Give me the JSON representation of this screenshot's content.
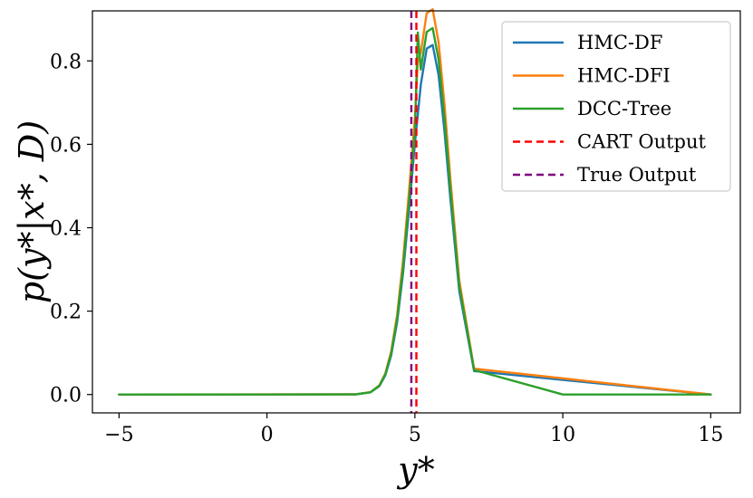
{
  "chart_data": {
    "type": "line",
    "title": "",
    "xlabel": "y*",
    "ylabel": "p(y*|x*, D)",
    "xlim": [
      -5.9,
      16.0
    ],
    "ylim": [
      -0.044,
      0.92
    ],
    "xticks": [
      -5,
      0,
      5,
      10,
      15
    ],
    "xtick_labels": [
      "−5",
      "0",
      "5",
      "10",
      "15"
    ],
    "yticks": [
      0.0,
      0.2,
      0.4,
      0.6,
      0.8
    ],
    "ytick_labels": [
      "0.0",
      "0.2",
      "0.4",
      "0.6",
      "0.8"
    ],
    "grid": false,
    "legend_position": "top-right",
    "series": [
      {
        "name": "HMC-DF",
        "color": "#1f77b4",
        "style": "solid",
        "x": [
          -5,
          3,
          3.5,
          3.8,
          4.0,
          4.2,
          4.4,
          4.6,
          4.8,
          5.0,
          5.2,
          5.4,
          5.6,
          5.8,
          6.0,
          6.2,
          6.5,
          7.0,
          15
        ],
        "y": [
          0.0,
          0.0004,
          0.0053,
          0.0203,
          0.0458,
          0.0939,
          0.1739,
          0.2914,
          0.4408,
          0.6024,
          0.7432,
          0.8294,
          0.8381,
          0.7662,
          0.6319,
          0.4705,
          0.2488,
          0.0562,
          0.0
        ]
      },
      {
        "name": "HMC-DFI",
        "color": "#ff7f0e",
        "style": "solid",
        "x": [
          -5,
          3,
          3.5,
          3.8,
          4.0,
          4.2,
          4.4,
          4.6,
          4.8,
          5.0,
          5.1,
          5.2,
          5.4,
          5.6,
          5.8,
          6.0,
          6.2,
          6.5,
          7.0,
          15
        ],
        "y": [
          0.0,
          0.0005,
          0.0058,
          0.0224,
          0.0505,
          0.1035,
          0.1917,
          0.3213,
          0.486,
          0.6642,
          0.8,
          0.8195,
          0.9145,
          0.924,
          0.8448,
          0.6967,
          0.5187,
          0.2743,
          0.062,
          0.0
        ]
      },
      {
        "name": "DCC-Tree",
        "color": "#2ca02c",
        "style": "solid",
        "x": [
          -5,
          0,
          3,
          3.5,
          3.8,
          4.0,
          4.2,
          4.4,
          4.6,
          4.8,
          5.0,
          5.1,
          5.2,
          5.4,
          5.6,
          5.8,
          6.0,
          6.2,
          6.5,
          7.0,
          10,
          15
        ],
        "y": [
          0.0,
          0.0,
          0.0005,
          0.0055,
          0.0213,
          0.048,
          0.0985,
          0.1823,
          0.3056,
          0.4622,
          0.6316,
          0.868,
          0.7793,
          0.8696,
          0.8787,
          0.8034,
          0.6625,
          0.4933,
          0.2608,
          0.059,
          0.0,
          0.0
        ]
      }
    ],
    "vlines": [
      {
        "name": "CART Output",
        "x": 5.05,
        "color": "#ff0000",
        "style": "dashed"
      },
      {
        "name": "True Output",
        "x": 4.88,
        "color": "#800080",
        "style": "dashed"
      }
    ]
  }
}
